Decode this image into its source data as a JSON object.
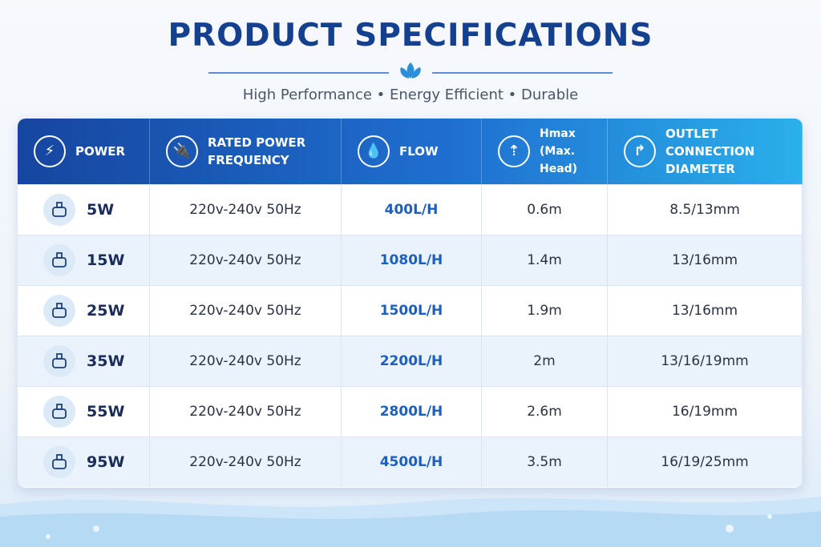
{
  "header": {
    "title": "PRODUCT SPECIFICATIONS",
    "subtitle": "High Performance • Energy Efficient • Durable"
  },
  "table": {
    "columns": [
      [
        "POWER"
      ],
      [
        "RATED POWER",
        "FREQUENCY"
      ],
      [
        "FLOW"
      ],
      [
        "Hmax",
        "(Max. Head)"
      ],
      [
        "OUTLET CONNECTION",
        "DIAMETER"
      ]
    ],
    "rows": [
      [
        "5W",
        "220v-240v 50Hz",
        "400L/H",
        "0.6m",
        "8.5/13mm"
      ],
      [
        "15W",
        "220v-240v 50Hz",
        "1080L/H",
        "1.4m",
        "13/16mm"
      ],
      [
        "25W",
        "220v-240v 50Hz",
        "1500L/H",
        "1.9m",
        "13/16mm"
      ],
      [
        "35W",
        "220v-240v 50Hz",
        "2200L/H",
        "2m",
        "13/16/19mm"
      ],
      [
        "55W",
        "220v-240v 50Hz",
        "2800L/H",
        "2.6m",
        "16/19mm"
      ],
      [
        "95W",
        "220v-240v 50Hz",
        "4500L/H",
        "3.5m",
        "16/19/25mm"
      ]
    ]
  }
}
